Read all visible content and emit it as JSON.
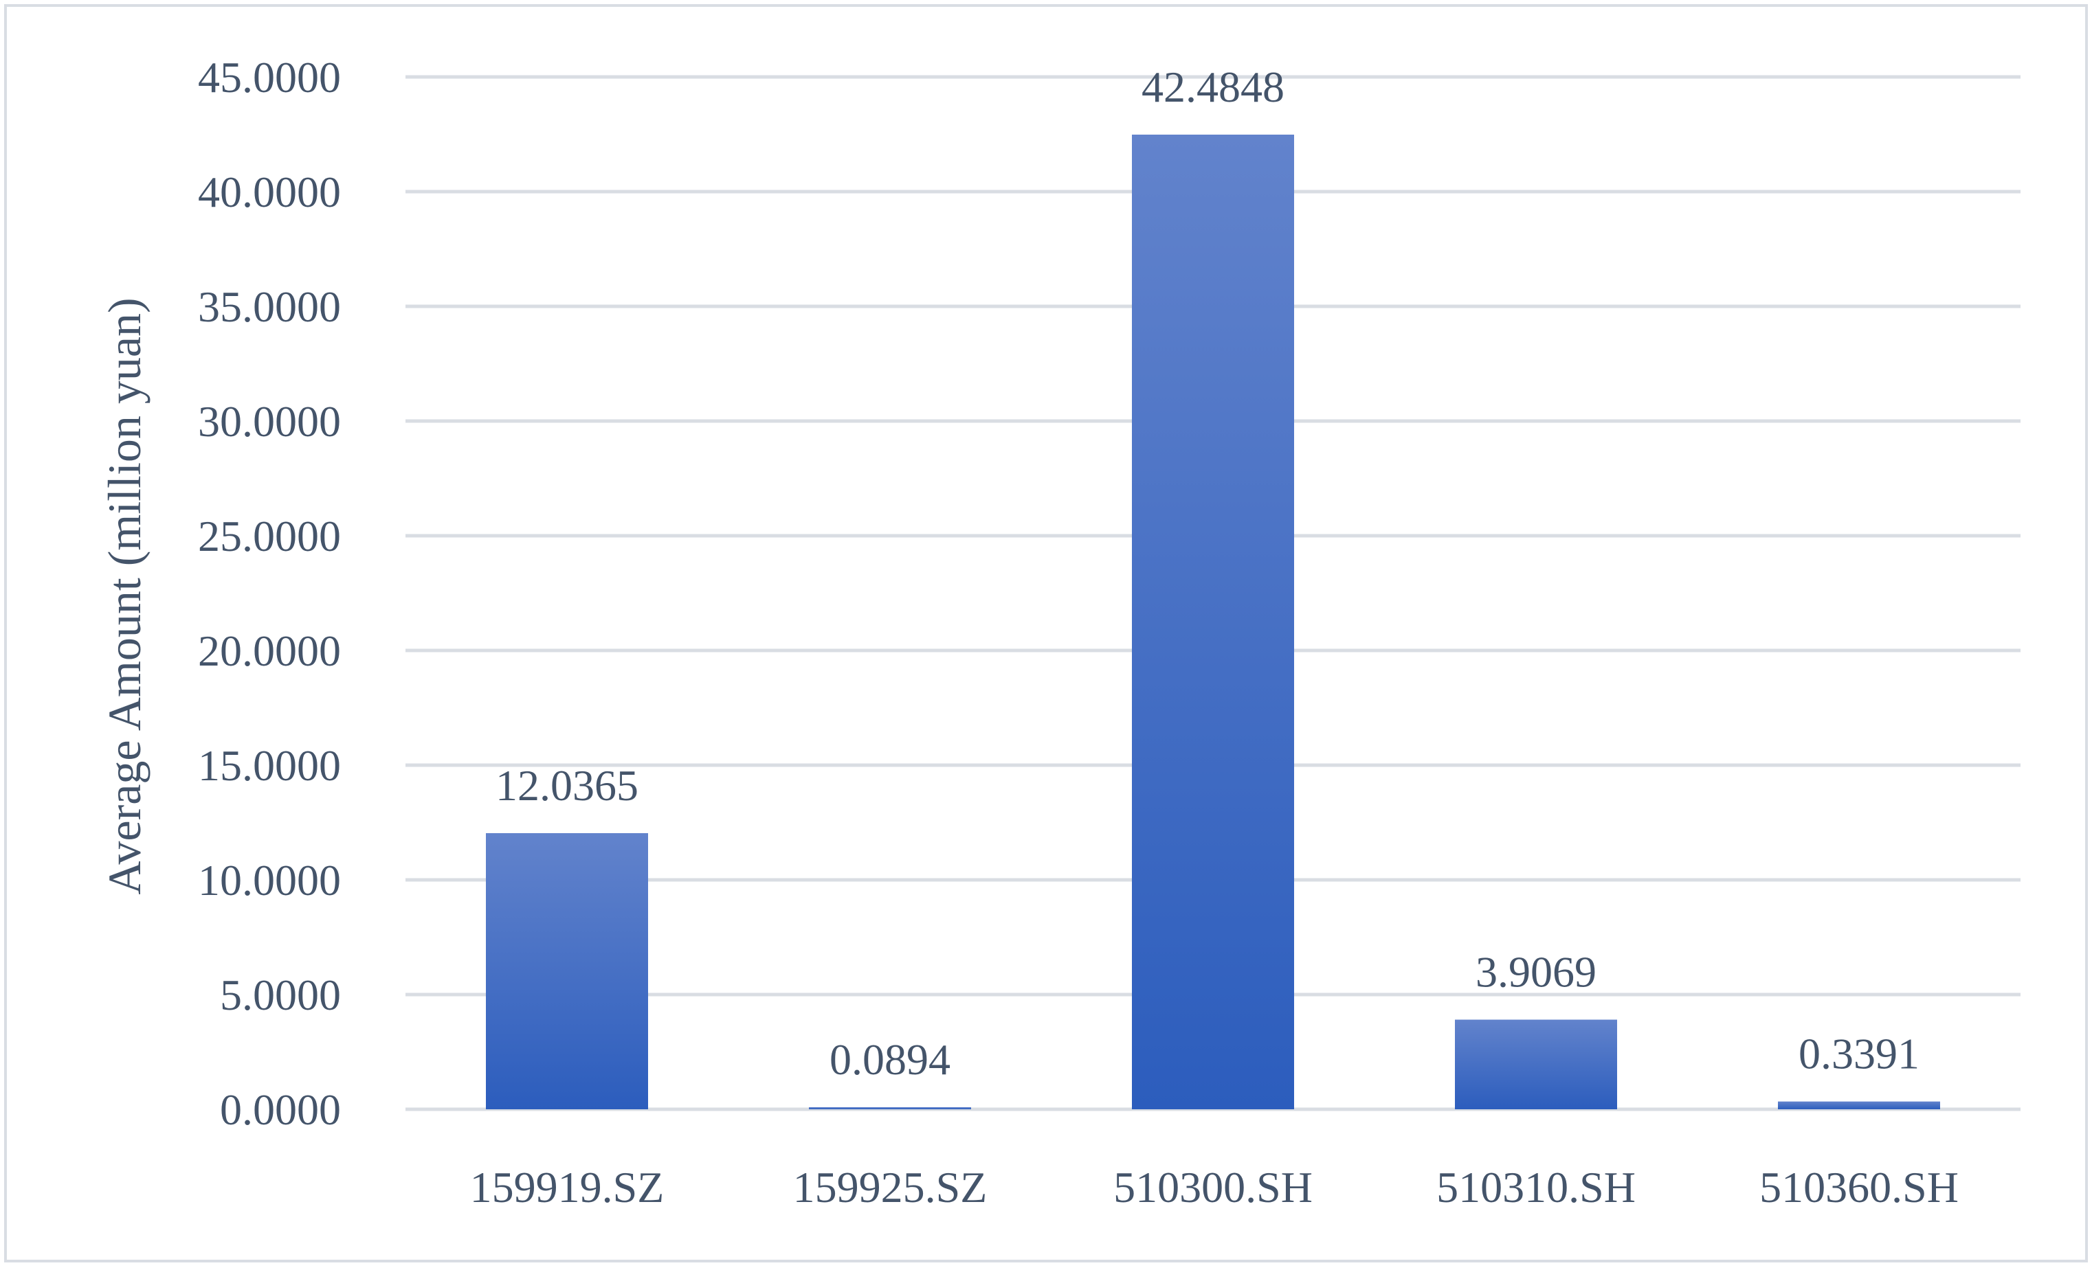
{
  "chart_data": {
    "type": "bar",
    "title": "",
    "xlabel": "",
    "ylabel": "Average Amount (million yuan)",
    "categories": [
      "159919.SZ",
      "159925.SZ",
      "510300.SH",
      "510310.SH",
      "510360.SH"
    ],
    "values": [
      12.0365,
      0.0894,
      42.4848,
      3.9069,
      0.3391
    ],
    "data_labels": [
      "12.0365",
      "0.0894",
      "42.4848",
      "3.9069",
      "0.3391"
    ],
    "ylim": [
      0,
      45
    ],
    "y_ticks": [
      0,
      5,
      10,
      15,
      20,
      25,
      30,
      35,
      40,
      45
    ],
    "y_tick_labels": [
      "0.0000",
      "5.0000",
      "10.0000",
      "15.0000",
      "20.0000",
      "25.0000",
      "30.0000",
      "35.0000",
      "40.0000",
      "45.0000"
    ],
    "grid": true,
    "legend": "none",
    "colors": {
      "bar_top": "#6283cc",
      "bar_bottom": "#2c5dbd",
      "grid": "#d9dde3",
      "text": "#44546a",
      "frame": "#d9dde3"
    }
  }
}
